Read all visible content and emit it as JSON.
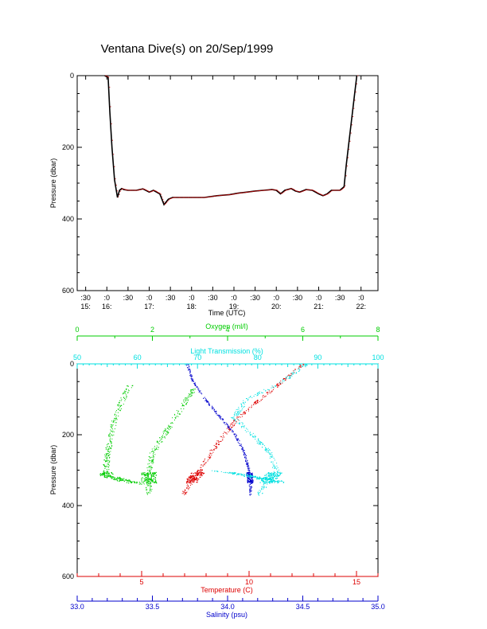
{
  "title": "Ventana Dive(s) on 20/Sep/1999",
  "colors": {
    "axis": "#000000",
    "depth_line": "#000000",
    "depth_points": "#cc0000",
    "oxygen": "#00cc00",
    "transmission": "#00e0e0",
    "temperature": "#dd0000",
    "salinity": "#0000cc"
  },
  "chart_data": [
    {
      "type": "line",
      "ylabel": "Pressure (dbar)",
      "xlabel": "Time (UTC)",
      "ylim": [
        600,
        0
      ],
      "yticks": [
        0,
        200,
        400,
        600
      ],
      "xlim": [
        15.3,
        22.4
      ],
      "xticks": [
        {
          "x": 15.5,
          "top": ":30",
          "bottom": "15:"
        },
        {
          "x": 16.0,
          "top": ":0",
          "bottom": "16:"
        },
        {
          "x": 16.5,
          "top": ":30",
          "bottom": ""
        },
        {
          "x": 17.0,
          "top": ":0",
          "bottom": "17:"
        },
        {
          "x": 17.5,
          "top": ":30",
          "bottom": ""
        },
        {
          "x": 18.0,
          "top": ":0",
          "bottom": "18:"
        },
        {
          "x": 18.5,
          "top": ":30",
          "bottom": ""
        },
        {
          "x": 19.0,
          "top": ":0",
          "bottom": "19:"
        },
        {
          "x": 19.5,
          "top": ":30",
          "bottom": ""
        },
        {
          "x": 20.0,
          "top": ":0",
          "bottom": "20:"
        },
        {
          "x": 20.5,
          "top": ":30",
          "bottom": ""
        },
        {
          "x": 21.0,
          "top": ":0",
          "bottom": "21:"
        },
        {
          "x": 21.5,
          "top": ":30",
          "bottom": ""
        },
        {
          "x": 22.0,
          "top": ":0",
          "bottom": "22:"
        }
      ],
      "series": [
        {
          "x": [
            15.95,
            16.03,
            16.07,
            16.12,
            16.18,
            16.25,
            16.3,
            16.35,
            16.4,
            16.5,
            16.7,
            16.85,
            17.0,
            17.1,
            17.25,
            17.35,
            17.45,
            17.55,
            17.75,
            18.0,
            18.3,
            18.6,
            18.9,
            19.1,
            19.3,
            19.5,
            19.7,
            19.9,
            20.0,
            20.1,
            20.2,
            20.35,
            20.45,
            20.55,
            20.7,
            20.85,
            21.0,
            21.1,
            21.2,
            21.3,
            21.5,
            21.6,
            21.65,
            21.75,
            21.85,
            21.9
          ],
          "y": [
            0,
            5,
            100,
            200,
            290,
            340,
            320,
            315,
            318,
            320,
            320,
            316,
            325,
            320,
            330,
            360,
            345,
            340,
            340,
            340,
            340,
            335,
            332,
            328,
            325,
            322,
            320,
            318,
            320,
            330,
            320,
            315,
            322,
            325,
            318,
            320,
            330,
            335,
            330,
            320,
            320,
            310,
            250,
            150,
            50,
            0
          ]
        }
      ]
    },
    {
      "type": "scatter",
      "ylabel": "Pressure (dbar)",
      "ylim": [
        600,
        0
      ],
      "yticks": [
        0,
        200,
        400,
        600
      ],
      "axes": {
        "oxygen": {
          "label": "Oxygen (ml/l)",
          "lim": [
            0,
            8
          ],
          "ticks": [
            0,
            2,
            4,
            6,
            8
          ],
          "position": "top"
        },
        "transmission": {
          "label": "Light Transmission (%)",
          "lim": [
            50,
            100
          ],
          "ticks": [
            50,
            60,
            70,
            80,
            90,
            100
          ],
          "position": "top"
        },
        "temperature": {
          "label": "Temperature (C)",
          "lim": [
            2,
            16
          ],
          "ticks": [
            5,
            10,
            15
          ],
          "position": "bottom"
        },
        "salinity": {
          "label": "Salinity (psu)",
          "lim": [
            33.0,
            35.0
          ],
          "ticks": [
            "33.0",
            "33.5",
            "34.0",
            "34.5",
            "35.0"
          ],
          "position": "bottom"
        }
      },
      "series": [
        {
          "axis": "oxygen",
          "p": [
            60,
            80,
            100,
            150,
            200,
            250,
            300,
            315,
            330,
            340
          ],
          "v": [
            1.4,
            1.3,
            1.2,
            1.0,
            0.9,
            0.8,
            0.75,
            0.8,
            1.3,
            1.8
          ]
        },
        {
          "axis": "oxygen",
          "p": [
            70,
            100,
            150,
            200,
            250,
            300,
            320,
            350,
            370
          ],
          "v": [
            3.1,
            2.9,
            2.6,
            2.3,
            2.0,
            1.9,
            1.9,
            1.9,
            1.9
          ]
        },
        {
          "axis": "temperature",
          "p": [
            0,
            50,
            100,
            150,
            200,
            250,
            300,
            320,
            340,
            370
          ],
          "v": [
            12.5,
            11.5,
            10.5,
            9.5,
            8.8,
            8.2,
            7.7,
            7.4,
            7.2,
            6.9
          ]
        },
        {
          "axis": "salinity",
          "p": [
            0,
            50,
            100,
            150,
            200,
            250,
            300,
            330,
            370
          ],
          "v": [
            33.73,
            33.77,
            33.85,
            33.95,
            34.05,
            34.11,
            34.14,
            34.15,
            34.15
          ]
        },
        {
          "axis": "transmission",
          "p": [
            0,
            50,
            100,
            150,
            200,
            250,
            300,
            320,
            350,
            370
          ],
          "v": [
            88,
            84,
            78,
            76,
            79,
            82,
            83,
            82,
            81,
            80
          ]
        },
        {
          "axis": "transmission",
          "p": [
            300,
            310,
            320,
            330
          ],
          "v": [
            72,
            77,
            80,
            83
          ]
        }
      ]
    }
  ]
}
